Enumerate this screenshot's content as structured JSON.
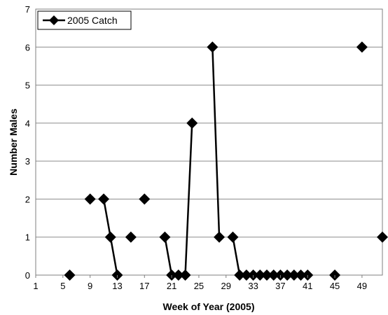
{
  "chart_data": {
    "type": "line",
    "x_axis_title": "Week of Year (2005)",
    "y_axis_title": "Number Males",
    "x_range": [
      1,
      52
    ],
    "y_range": [
      0,
      7
    ],
    "x_tick_labels": [
      1,
      5,
      9,
      13,
      17,
      21,
      25,
      29,
      33,
      37,
      41,
      45,
      49
    ],
    "y_tick_labels": [
      0,
      1,
      2,
      3,
      4,
      5,
      6,
      7
    ],
    "grid": "horizontal",
    "legend_position": "top-left",
    "series": [
      {
        "name": "2005 Catch",
        "color": "#000000",
        "marker": "diamond",
        "points": [
          {
            "x": 6,
            "y": 0
          },
          {
            "x": 9,
            "y": 2
          },
          {
            "x": 11,
            "y": 2
          },
          {
            "x": 12,
            "y": 1
          },
          {
            "x": 13,
            "y": 0
          },
          {
            "x": 15,
            "y": 1
          },
          {
            "x": 17,
            "y": 2
          },
          {
            "x": 20,
            "y": 1
          },
          {
            "x": 21,
            "y": 0
          },
          {
            "x": 22,
            "y": 0
          },
          {
            "x": 23,
            "y": 0
          },
          {
            "x": 24,
            "y": 4
          },
          {
            "x": 27,
            "y": 6
          },
          {
            "x": 28,
            "y": 1
          },
          {
            "x": 30,
            "y": 1
          },
          {
            "x": 31,
            "y": 0
          },
          {
            "x": 32,
            "y": 0
          },
          {
            "x": 33,
            "y": 0
          },
          {
            "x": 34,
            "y": 0
          },
          {
            "x": 35,
            "y": 0
          },
          {
            "x": 36,
            "y": 0
          },
          {
            "x": 37,
            "y": 0
          },
          {
            "x": 38,
            "y": 0
          },
          {
            "x": 39,
            "y": 0
          },
          {
            "x": 40,
            "y": 0
          },
          {
            "x": 41,
            "y": 0
          },
          {
            "x": 45,
            "y": 0
          },
          {
            "x": 49,
            "y": 6
          },
          {
            "x": 52,
            "y": 1
          }
        ]
      }
    ]
  }
}
